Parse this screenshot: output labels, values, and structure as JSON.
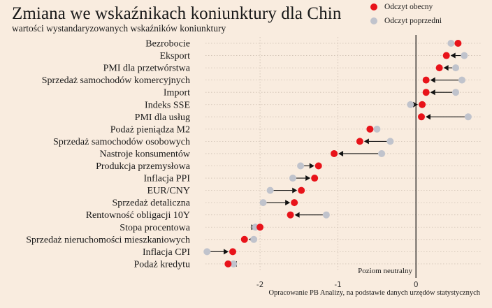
{
  "title": "Zmiana we wskaźnikach koniunktury dla Chin",
  "subtitle": "wartości wystandaryzowanych wskaźników koniunktury",
  "legend": [
    {
      "label": "Odczyt obecny",
      "color": "#e8131a"
    },
    {
      "label": "Odczyt poprzedni",
      "color": "#c0c3cc"
    }
  ],
  "neutral_label": "Poziom neutralny",
  "source": "Opracowanie PB Analizy, na podstawie danych urzędów statystycznych",
  "chart_data": {
    "type": "scatter",
    "title": "Zmiana we wskaźnikach koniunktury dla Chin",
    "subtitle": "wartości wystandaryzowanych wskaźników koniunktury",
    "xlim": [
      -2.7,
      0.85
    ],
    "xticks": [
      -2,
      -1,
      0
    ],
    "tick_labels": [
      "-2",
      "-1",
      "0"
    ],
    "neutral_value": 0,
    "grid": true,
    "legend_position": "top-right",
    "series": [
      {
        "name": "Odczyt obecny",
        "color": "#e8131a"
      },
      {
        "name": "Odczyt poprzedni",
        "color": "#c0c3cc"
      }
    ],
    "categories": [
      "Bezrobocie",
      "Eksport",
      "PMI dla przetwórstwa",
      "Sprzedaż samochodów komercyjnych",
      "Import",
      "Indeks SSE",
      "PMI dla usług",
      "Podaż pieniądza M2",
      "Sprzedaż samochodów osobowych",
      "Nastroje konsumentów",
      "Produkcja przemysłowa",
      "Inflacja PPI",
      "EUR/CNY",
      "Sprzedaż detaliczna",
      "Rentowność obligacji 10Y",
      "Stopa procentowa",
      "Sprzedaż nieruchomości mieszkaniowych",
      "Inflacja CPI",
      "Podaż kredytu"
    ],
    "current": [
      0.54,
      0.39,
      0.3,
      0.13,
      0.13,
      0.08,
      0.07,
      -0.59,
      -0.72,
      -1.05,
      -1.25,
      -1.3,
      -1.47,
      -1.56,
      -1.61,
      -2.0,
      -2.2,
      -2.35,
      -2.41
    ],
    "previous": [
      0.45,
      0.62,
      0.51,
      0.59,
      0.51,
      -0.07,
      0.67,
      -0.5,
      -0.33,
      -0.44,
      -1.48,
      -1.58,
      -1.87,
      -1.96,
      -1.15,
      -2.06,
      -2.08,
      -2.68,
      -2.34
    ]
  }
}
